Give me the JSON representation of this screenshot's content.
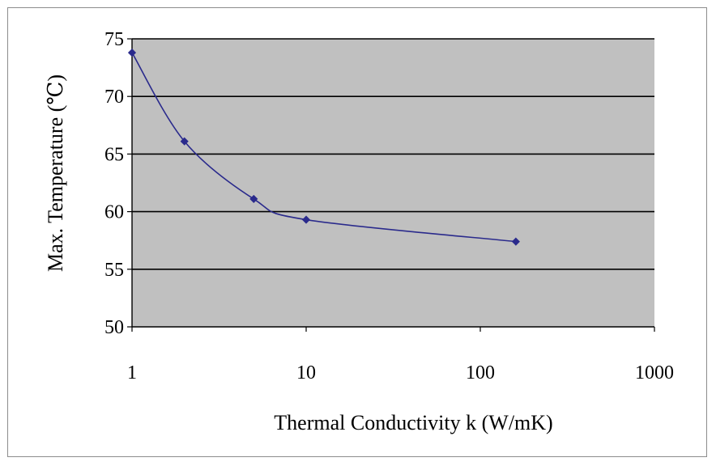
{
  "chart_data": {
    "type": "line",
    "title": "",
    "xlabel": "Thermal Conductivity k (W/mK)",
    "ylabel": "Max. Temperature (℃)",
    "x_scale": "log",
    "xlim": [
      1,
      1000
    ],
    "ylim": [
      50,
      75
    ],
    "x_ticks": [
      1,
      10,
      100,
      1000
    ],
    "x_tick_labels": [
      "1",
      "10",
      "100",
      "1000"
    ],
    "y_ticks": [
      50,
      55,
      60,
      65,
      70,
      75
    ],
    "y_tick_labels": [
      "50",
      "55",
      "60",
      "65",
      "70",
      "75"
    ],
    "grid": "horizontal major gridlines",
    "legend": "none",
    "plot_background": "#c0c0c0",
    "gridline_color": "#000000",
    "series": [
      {
        "color": "#2a2a8c",
        "marker": "diamond",
        "line": "smoothed",
        "x": [
          1,
          2,
          5,
          10,
          160
        ],
        "y": [
          73.8,
          66.1,
          61.1,
          59.3,
          57.4
        ]
      }
    ]
  }
}
